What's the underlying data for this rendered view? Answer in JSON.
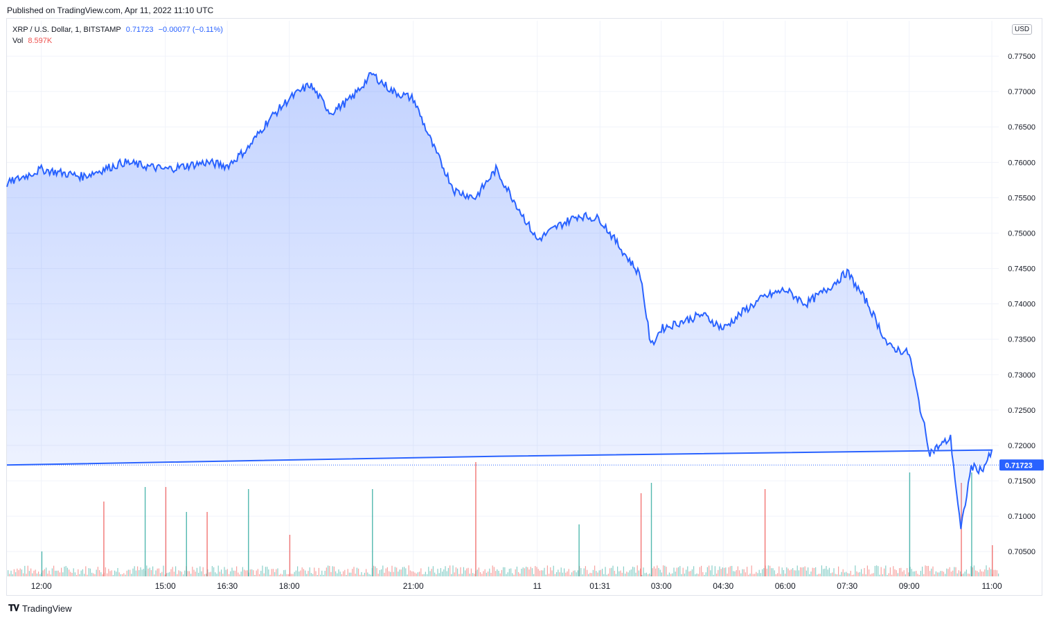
{
  "published_text": "Published on TradingView.com, Apr 11, 2022 11:10 UTC",
  "legend": {
    "symbol": "XRP / U.S. Dollar, 1, BITSTAMP",
    "last": "0.71723",
    "change": "−0.00077 (−0.11%)",
    "vol_label": "Vol",
    "vol_value": "8.597K"
  },
  "currency_badge": "USD",
  "last_price_label": "0.71723",
  "footer_brand": "TradingView",
  "colors": {
    "line": "#2962ff",
    "up_volume": "#26a69a",
    "down_volume": "#ef5350",
    "grid": "#f0f3fa",
    "price_tag": "#2962ff"
  },
  "chart_data": {
    "type": "area",
    "series": [
      {
        "x": [
          "11:10",
          "12:00",
          "13:00",
          "14:00",
          "15:00",
          "16:00",
          "16:30",
          "17:00",
          "17:30",
          "18:00",
          "18:30",
          "19:00",
          "19:30",
          "20:00",
          "20:30",
          "21:00",
          "21:30",
          "22:00",
          "22:30",
          "23:00",
          "23:30",
          "00:00",
          "00:30",
          "01:00",
          "01:31",
          "02:00",
          "02:30",
          "02:45",
          "03:00",
          "03:30",
          "04:00",
          "04:30",
          "05:00",
          "05:30",
          "06:00",
          "06:30",
          "07:00",
          "07:30",
          "08:00",
          "08:30",
          "09:00",
          "09:10",
          "09:30",
          "10:00",
          "10:15",
          "10:30",
          "10:45",
          "11:00",
          "11:10"
        ],
        "values": [
          0.757,
          0.759,
          0.758,
          0.76,
          0.759,
          0.76,
          0.7595,
          0.762,
          0.766,
          0.769,
          0.771,
          0.767,
          0.769,
          0.7725,
          0.77,
          0.769,
          0.762,
          0.756,
          0.755,
          0.759,
          0.754,
          0.749,
          0.751,
          0.7525,
          0.752,
          0.748,
          0.744,
          0.734,
          0.7365,
          0.7375,
          0.7385,
          0.7365,
          0.739,
          0.741,
          0.742,
          0.74,
          0.742,
          0.7445,
          0.74,
          0.734,
          0.733,
          0.728,
          0.719,
          0.721,
          0.708,
          0.717,
          0.7165,
          0.719,
          0.71723
        ]
      }
    ],
    "volume": [
      {
        "x": "12:00",
        "v": 1.2
      },
      {
        "x": "13:30",
        "v": 3.6
      },
      {
        "x": "14:30",
        "v": 4.3
      },
      {
        "x": "15:00",
        "v": 4.3
      },
      {
        "x": "15:30",
        "v": 3.1
      },
      {
        "x": "16:00",
        "v": 3.1
      },
      {
        "x": "17:00",
        "v": 4.2
      },
      {
        "x": "18:00",
        "v": 2.0
      },
      {
        "x": "20:00",
        "v": 4.2
      },
      {
        "x": "22:30",
        "v": 5.5
      },
      {
        "x": "01:00",
        "v": 2.5
      },
      {
        "x": "02:30",
        "v": 4.0
      },
      {
        "x": "02:45",
        "v": 4.5
      },
      {
        "x": "05:30",
        "v": 4.2
      },
      {
        "x": "09:00",
        "v": 5.0
      },
      {
        "x": "10:15",
        "v": 4.5
      },
      {
        "x": "10:30",
        "v": 5.0
      },
      {
        "x": "11:00",
        "v": 1.5
      }
    ],
    "xlabels": [
      "12:00",
      "15:00",
      "16:30",
      "18:00",
      "21:00",
      "11",
      "01:31",
      "03:00",
      "04:30",
      "06:00",
      "07:30",
      "09:00",
      "11:00"
    ],
    "y_ticks": [
      "0.77500",
      "0.77000",
      "0.76500",
      "0.76000",
      "0.75500",
      "0.75000",
      "0.74500",
      "0.74000",
      "0.73500",
      "0.73000",
      "0.72500",
      "0.72000",
      "0.71500",
      "0.71000",
      "0.70500"
    ],
    "ylim": [
      0.7015,
      0.78
    ],
    "grid": true
  }
}
